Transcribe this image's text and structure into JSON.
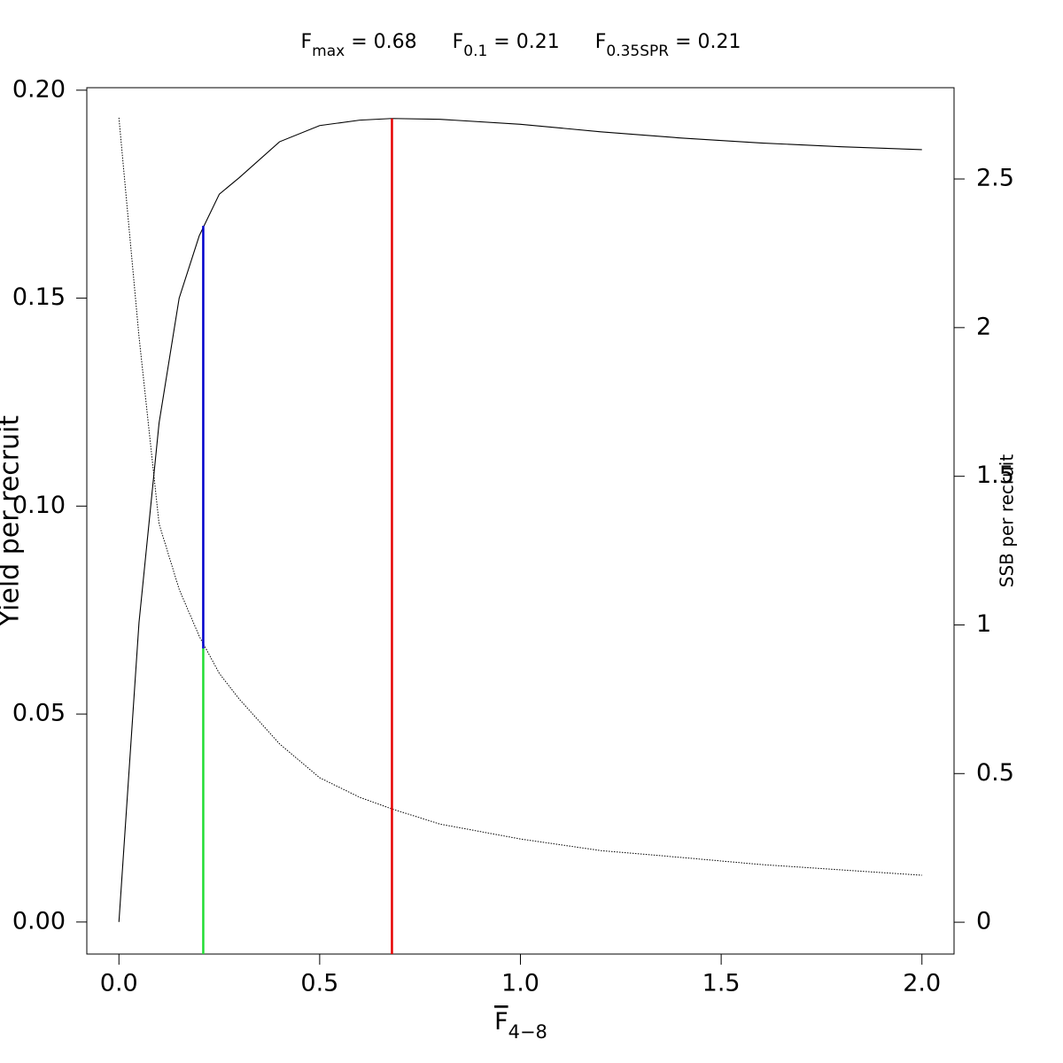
{
  "chart_data": {
    "type": "line",
    "title_parts": [
      {
        "text": "F",
        "sub": "max",
        "tail": " = 0.68"
      },
      {
        "text": "F",
        "sub": "0.1",
        "tail": " = 0.21"
      },
      {
        "text": "F",
        "sub": "0.35SPR",
        "tail": " = 0.21"
      }
    ],
    "x_label": {
      "text": "F",
      "sub": "4−8"
    },
    "y_label": "Yield per recruit",
    "y2_label": "SSB per recruit",
    "xlim": [
      -0.08,
      2.08
    ],
    "ylim": [
      -0.0077,
      0.2006
    ],
    "y2lim": [
      -0.107,
      2.807
    ],
    "xticks": [
      {
        "value": 0,
        "label": "0.0"
      },
      0.5,
      {
        "value": 1,
        "label": "1.0"
      },
      1.5,
      {
        "value": 2,
        "label": "2.0"
      }
    ],
    "yticks": [
      {
        "value": 0,
        "label": "0.00"
      },
      0.05,
      {
        "value": 0.1,
        "label": "0.10"
      },
      0.15,
      {
        "value": 0.2,
        "label": "0.20"
      }
    ],
    "y2ticks": [
      0,
      0.5,
      1,
      1.5,
      2,
      2.5
    ],
    "series": [
      {
        "color": "#000000",
        "dash": false,
        "x": [
          0,
          0.05,
          0.1,
          0.15,
          0.2,
          0.25,
          0.3,
          0.4,
          0.5,
          0.6,
          0.68,
          0.8,
          1.0,
          1.2,
          1.4,
          1.6,
          1.8,
          2.0
        ],
        "values": [
          0,
          0.072,
          0.12,
          0.15,
          0.165,
          0.175,
          0.179,
          0.1876,
          0.1915,
          0.1928,
          0.1932,
          0.193,
          0.1918,
          0.19,
          0.1885,
          0.1873,
          0.1864,
          0.1857
        ]
      },
      {
        "color": "#000000",
        "dash": true,
        "axis": "y2",
        "x": [
          0,
          0.05,
          0.1,
          0.15,
          0.2,
          0.25,
          0.3,
          0.4,
          0.5,
          0.6,
          0.68,
          0.8,
          1.0,
          1.2,
          1.4,
          1.6,
          1.8,
          2.0
        ],
        "values": [
          2.706,
          1.97,
          1.34,
          1.12,
          0.962,
          0.837,
          0.75,
          0.6,
          0.486,
          0.42,
          0.381,
          0.33,
          0.28,
          0.241,
          0.218,
          0.194,
          0.176,
          0.158
        ]
      }
    ],
    "reference_lines": [
      {
        "x": 0.68,
        "to": 0.1932,
        "color": "#e60000"
      },
      {
        "x": 0.21,
        "from": 0.921,
        "from_axis": "y2",
        "to": 0.1674,
        "color": "#0000cc"
      },
      {
        "x": 0.21,
        "to": 0.921,
        "to_axis": "y2",
        "color": "#22dd33"
      }
    ]
  }
}
